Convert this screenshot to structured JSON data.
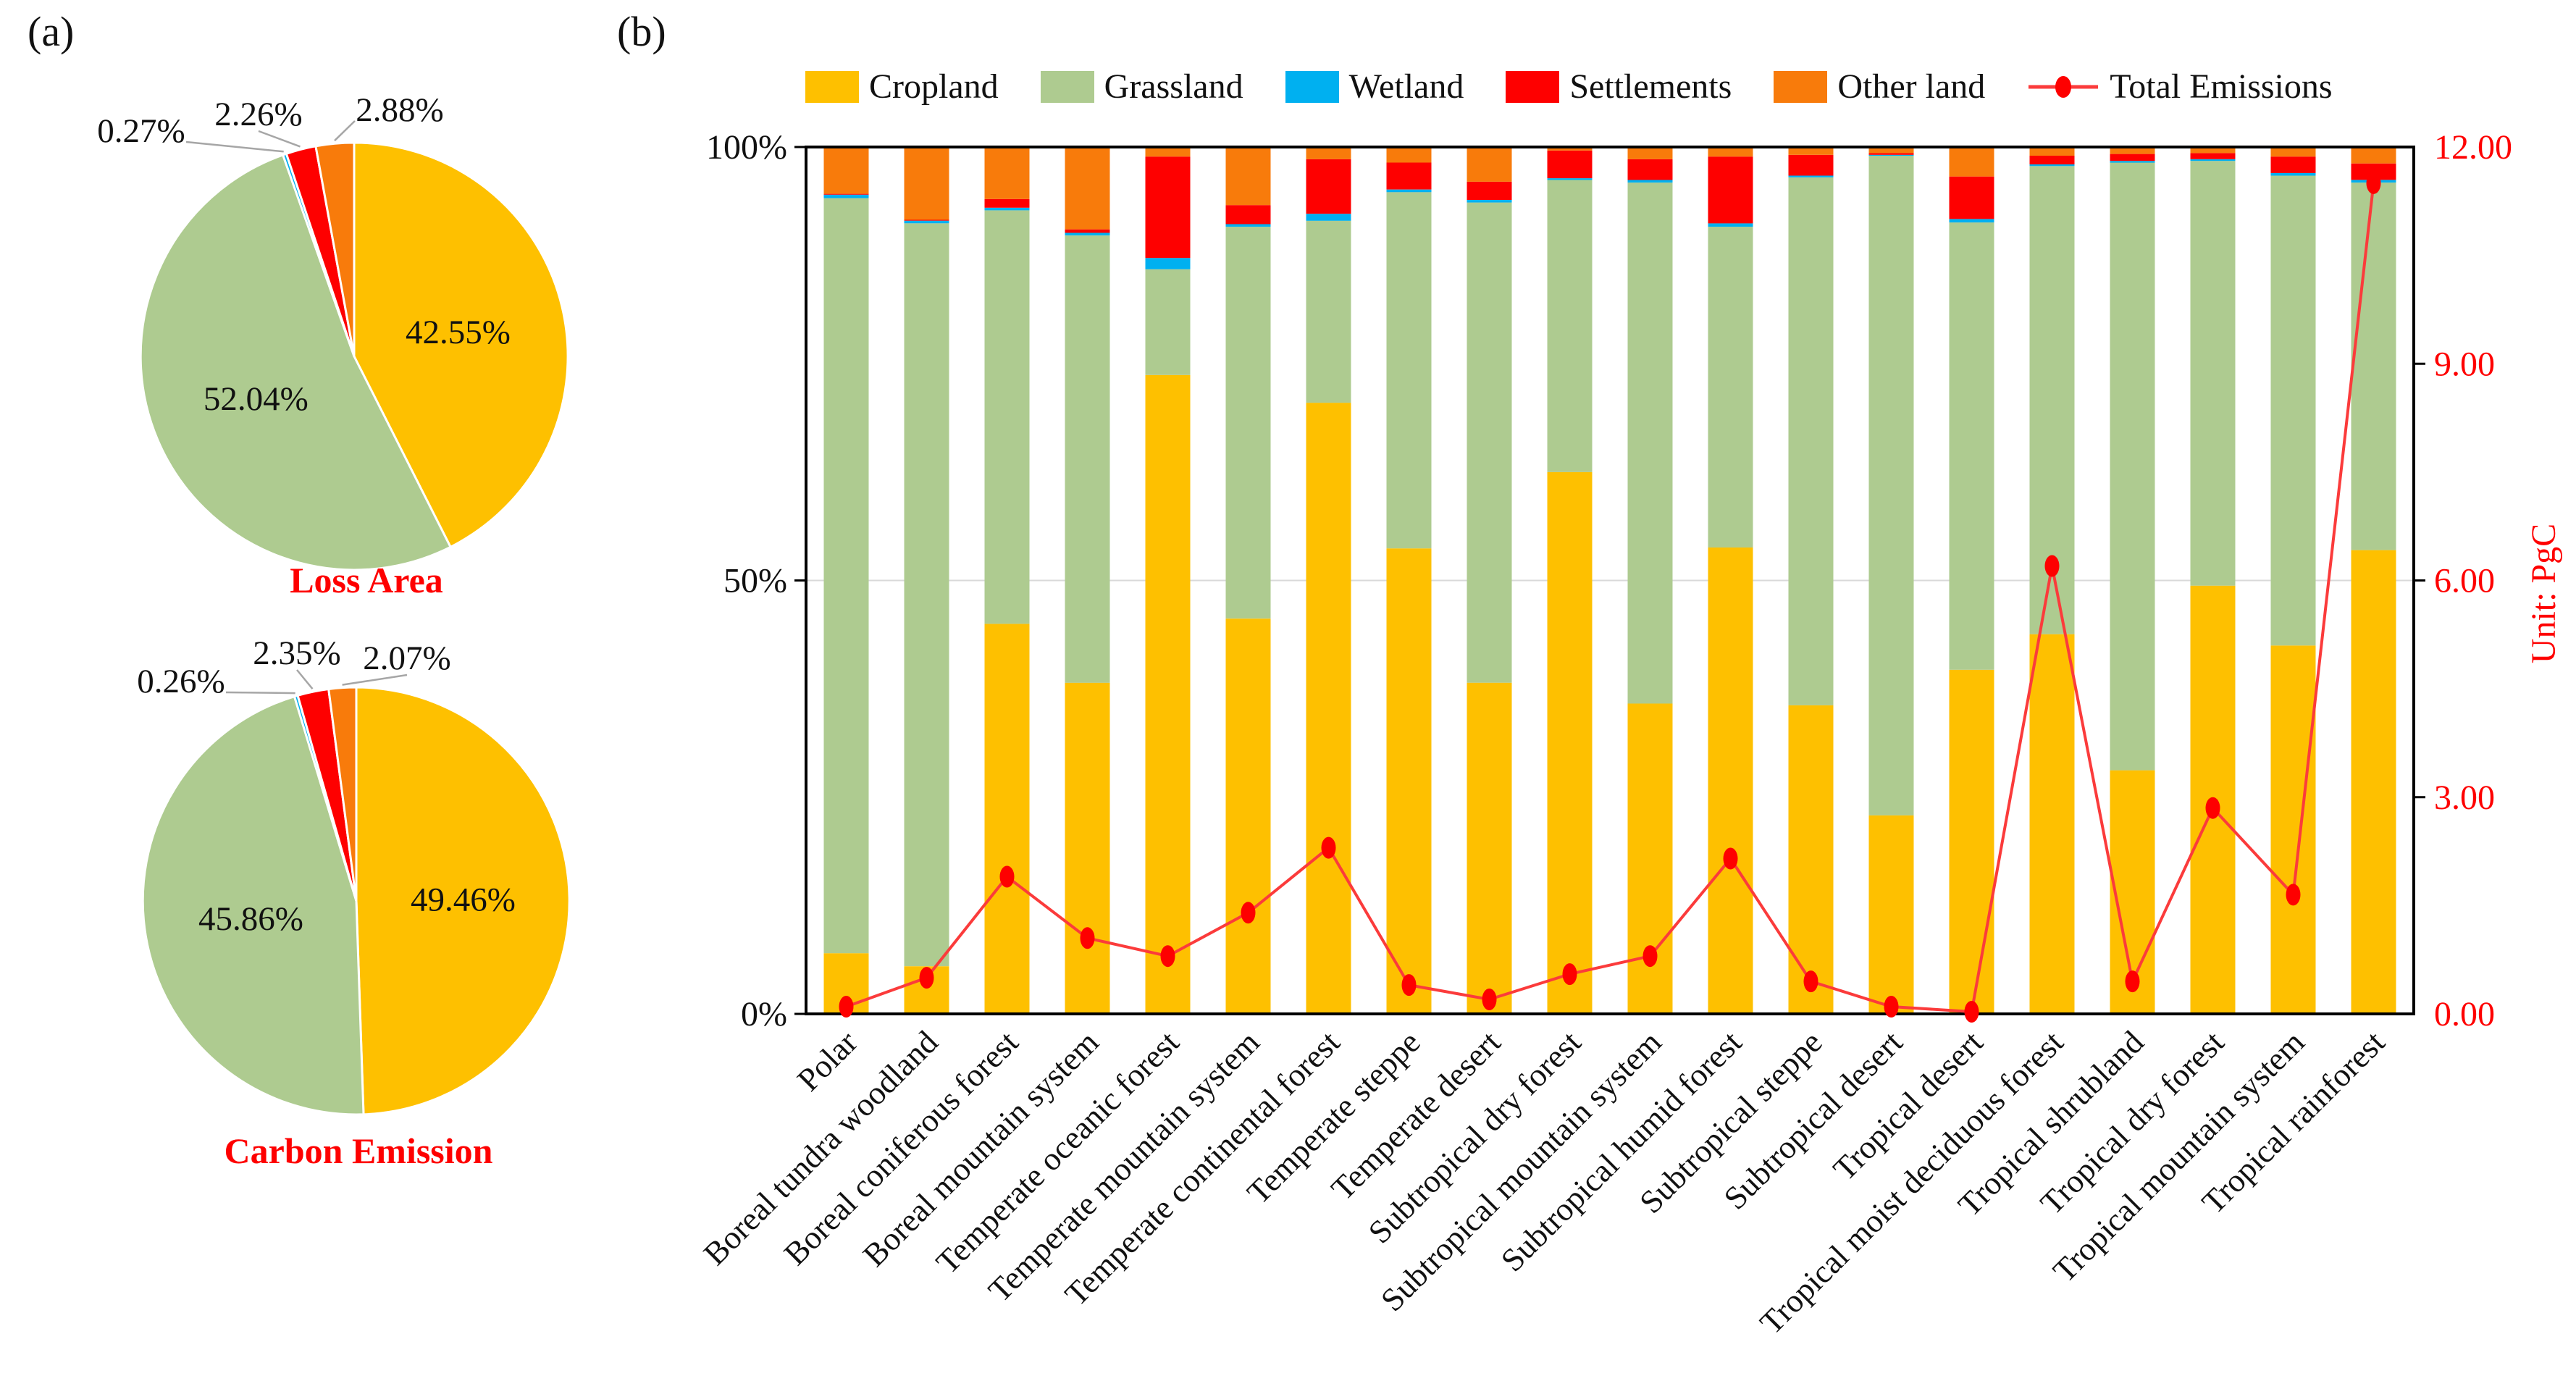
{
  "figure": {
    "panel_a_label": "(a)",
    "panel_b_label": "(b)"
  },
  "colors": {
    "cropland": "#FEC000",
    "grassland": "#AECB90",
    "wetland": "#00B0F0",
    "settlements": "#FE0000",
    "other_land": "#F87B0B",
    "emissions_line": "#FB3B3B",
    "emissions_marker": "#FE0000",
    "pie_title": "#FE0000",
    "right_axis_text": "#FE0000",
    "leader_line": "#A6A6A6",
    "gridline": "#D9D9D9",
    "axis": "#000000"
  },
  "legend": {
    "items": [
      {
        "label": "Cropland",
        "type": "swatch",
        "color_key": "cropland"
      },
      {
        "label": "Grassland",
        "type": "swatch",
        "color_key": "grassland"
      },
      {
        "label": "Wetland",
        "type": "swatch",
        "color_key": "wetland"
      },
      {
        "label": "Settlements",
        "type": "swatch",
        "color_key": "settlements"
      },
      {
        "label": "Other land",
        "type": "swatch",
        "color_key": "other_land"
      },
      {
        "label": "Total Emissions",
        "type": "line_marker",
        "color_key": "emissions_marker"
      }
    ]
  },
  "chart_data": [
    {
      "type": "pie",
      "title": "Loss Area",
      "slices": [
        {
          "label": "Cropland",
          "value": 42.55,
          "display": "42.55%",
          "color_key": "cropland",
          "label_style": "inside"
        },
        {
          "label": "Grassland",
          "value": 52.04,
          "display": "52.04%",
          "color_key": "grassland",
          "label_style": "inside"
        },
        {
          "label": "Wetland",
          "value": 0.27,
          "display": "0.27%",
          "color_key": "wetland",
          "label_style": "outside"
        },
        {
          "label": "Settlements",
          "value": 2.26,
          "display": "2.26%",
          "color_key": "settlements",
          "label_style": "outside"
        },
        {
          "label": "Other land",
          "value": 2.88,
          "display": "2.88%",
          "color_key": "other_land",
          "label_style": "outside"
        }
      ]
    },
    {
      "type": "pie",
      "title": "Carbon Emission",
      "slices": [
        {
          "label": "Cropland",
          "value": 49.46,
          "display": "49.46%",
          "color_key": "cropland",
          "label_style": "inside"
        },
        {
          "label": "Grassland",
          "value": 45.86,
          "display": "45.86%",
          "color_key": "grassland",
          "label_style": "inside"
        },
        {
          "label": "Wetland",
          "value": 0.26,
          "display": "0.26%",
          "color_key": "wetland",
          "label_style": "outside"
        },
        {
          "label": "Settlements",
          "value": 2.35,
          "display": "2.35%",
          "color_key": "settlements",
          "label_style": "outside"
        },
        {
          "label": "Other land",
          "value": 2.07,
          "display": "2.07%",
          "color_key": "other_land",
          "label_style": "outside"
        }
      ]
    },
    {
      "type": "bar",
      "stacked": true,
      "categories": [
        "Polar",
        "Boreal tundra woodland",
        "Boreal coniferous forest",
        "Boreal mountain system",
        "Temperate oceanic forest",
        "Temperate mountain system",
        "Temperate continental forest",
        "Temperate steppe",
        "Temperate desert",
        "Subtropical dry forest",
        "Subtropical mountain system",
        "Subtropical humid forest",
        "Subtropical steppe",
        "Subtropical desert",
        "Tropical desert",
        "Tropical moist deciduous forest",
        "Tropical shrubland",
        "Tropical dry forest",
        "Tropical mountain system",
        "Tropical rainforest"
      ],
      "series": [
        {
          "name": "Cropland",
          "color_key": "cropland",
          "values": [
            7.0,
            5.5,
            45.0,
            38.2,
            73.7,
            45.6,
            70.5,
            53.7,
            38.2,
            62.5,
            35.8,
            53.8,
            35.6,
            22.9,
            39.7,
            43.8,
            28.1,
            49.4,
            42.5,
            53.5
          ]
        },
        {
          "name": "Grassland",
          "color_key": "grassland",
          "values": [
            87.1,
            85.7,
            47.7,
            51.6,
            12.2,
            45.2,
            21.0,
            41.1,
            55.4,
            33.7,
            60.1,
            37.0,
            60.9,
            76.1,
            51.6,
            54.0,
            70.1,
            49.0,
            54.2,
            42.4
          ]
        },
        {
          "name": "Wetland",
          "color_key": "wetland",
          "values": [
            0.4,
            0.3,
            0.3,
            0.3,
            1.3,
            0.3,
            0.8,
            0.3,
            0.3,
            0.2,
            0.3,
            0.4,
            0.2,
            0.1,
            0.4,
            0.2,
            0.2,
            0.2,
            0.3,
            0.3
          ]
        },
        {
          "name": "Settlements",
          "color_key": "settlements",
          "values": [
            0.1,
            0.1,
            1.0,
            0.4,
            11.7,
            2.2,
            6.3,
            3.1,
            2.1,
            3.2,
            2.4,
            7.7,
            2.4,
            0.2,
            4.9,
            1.0,
            0.8,
            0.7,
            1.9,
            1.9
          ]
        },
        {
          "name": "Other land",
          "color_key": "other_land",
          "values": [
            5.4,
            8.4,
            6.0,
            9.5,
            1.1,
            6.7,
            1.4,
            1.8,
            4.0,
            0.4,
            1.4,
            1.1,
            0.9,
            0.7,
            3.4,
            1.0,
            0.8,
            0.7,
            1.1,
            1.9
          ]
        }
      ],
      "line_series": {
        "name": "Total Emissions",
        "axis": "right",
        "unit": "PgC",
        "color_key": "emissions_marker",
        "values": [
          0.1,
          0.5,
          1.9,
          1.05,
          0.8,
          1.4,
          2.3,
          0.4,
          0.2,
          0.55,
          0.8,
          2.15,
          0.45,
          0.1,
          0.03,
          6.2,
          0.45,
          2.85,
          1.65,
          11.5
        ]
      },
      "left_axis": {
        "min": 0,
        "max": 100,
        "gridline_at": 50,
        "ticks": [
          {
            "label": "100%",
            "value": 100
          },
          {
            "label": "50%",
            "value": 50
          },
          {
            "label": "0%",
            "value": 0
          }
        ]
      },
      "right_axis": {
        "min": 0,
        "max": 12,
        "title": "Unit: PgC",
        "ticks": [
          {
            "label": "12.00",
            "value": 12
          },
          {
            "label": "9.00",
            "value": 9
          },
          {
            "label": "6.00",
            "value": 6
          },
          {
            "label": "3.00",
            "value": 3
          },
          {
            "label": "0.00",
            "value": 0
          }
        ]
      }
    }
  ]
}
